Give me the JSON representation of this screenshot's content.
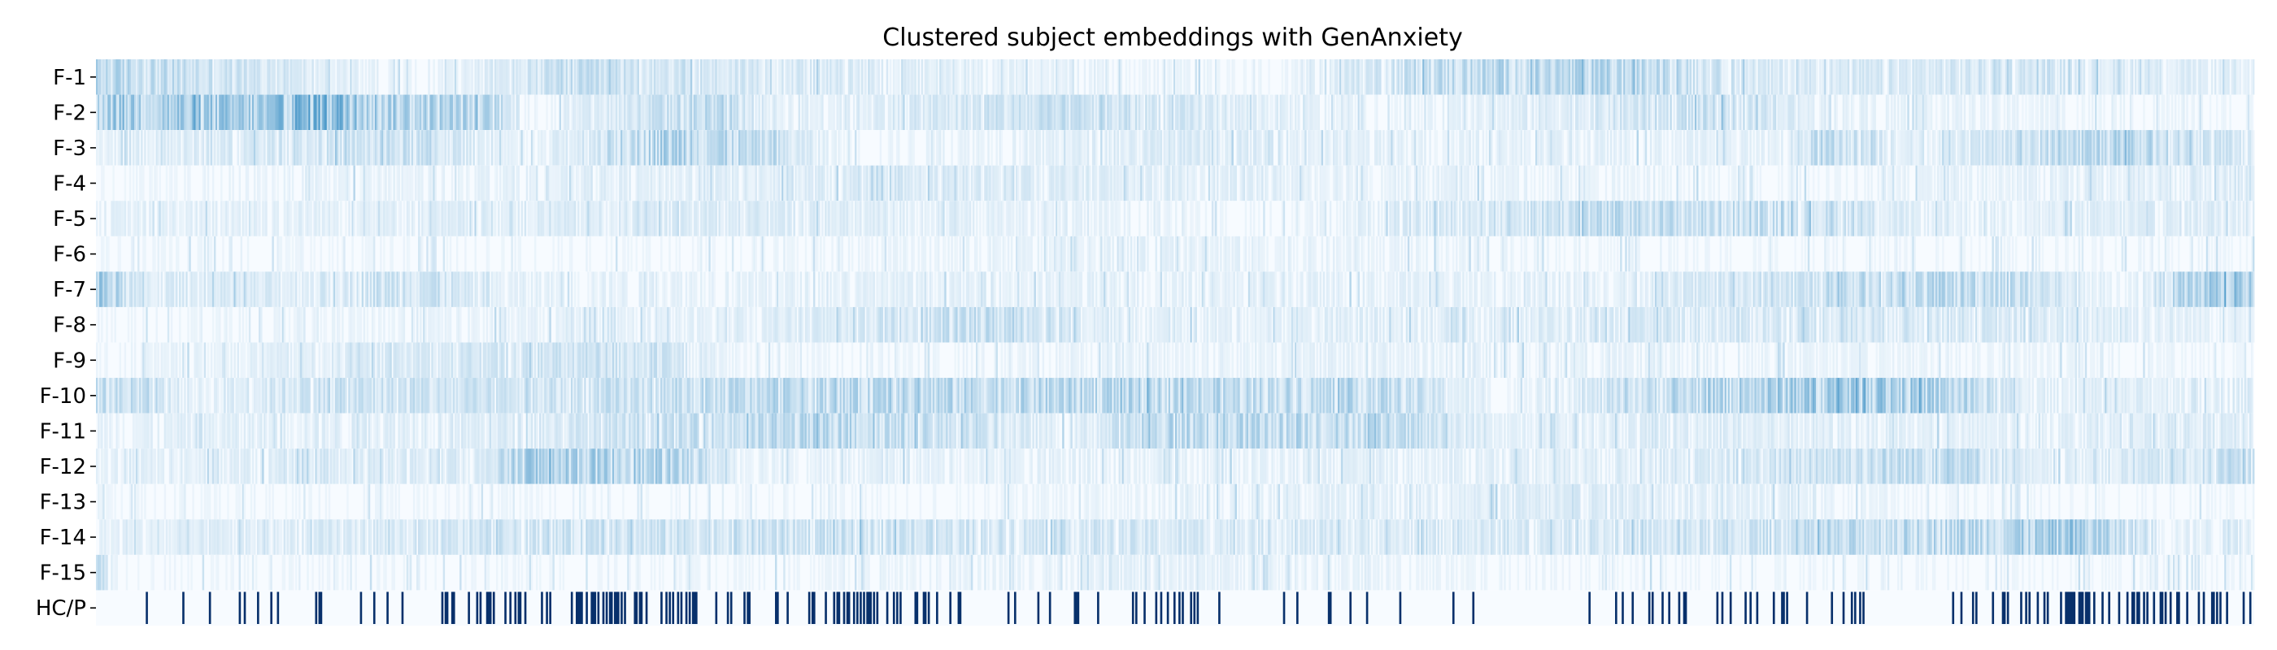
{
  "chart_data": {
    "type": "heatmap",
    "title": "Clustered subject embeddings with GenAnxiety",
    "colormap": "Blues",
    "rows": [
      "F-1",
      "F-2",
      "F-3",
      "F-4",
      "F-5",
      "F-6",
      "F-7",
      "F-8",
      "F-9",
      "F-10",
      "F-11",
      "F-12",
      "F-13",
      "F-14",
      "F-15",
      "HC/P"
    ],
    "binary_row": "HC/P",
    "binary_color": "#08306b",
    "max_color": "#4a98c9",
    "min_color": "#f7fbff",
    "n_columns": 1300,
    "row_intensity_profiles": {
      "F-1": [
        [
          0,
          0.35
        ],
        [
          0.15,
          0.05
        ],
        [
          0.22,
          0.25
        ],
        [
          0.3,
          0.2
        ],
        [
          0.4,
          0.1
        ],
        [
          0.55,
          0.05
        ],
        [
          0.62,
          0.3
        ],
        [
          0.7,
          0.35
        ],
        [
          0.78,
          0.15
        ],
        [
          0.9,
          0.2
        ],
        [
          1,
          0.1
        ]
      ],
      "F-2": [
        [
          0,
          0.5
        ],
        [
          0.08,
          0.45
        ],
        [
          0.1,
          0.75
        ],
        [
          0.13,
          0.45
        ],
        [
          0.18,
          0.35
        ],
        [
          0.2,
          0.05
        ],
        [
          0.28,
          0.3
        ],
        [
          0.32,
          0.1
        ],
        [
          0.45,
          0.25
        ],
        [
          0.6,
          0.05
        ],
        [
          0.75,
          0.25
        ],
        [
          0.8,
          0.1
        ],
        [
          1,
          0.05
        ]
      ],
      "F-3": [
        [
          0,
          0.1
        ],
        [
          0.15,
          0.25
        ],
        [
          0.2,
          0.05
        ],
        [
          0.27,
          0.45
        ],
        [
          0.35,
          0.05
        ],
        [
          0.5,
          0.15
        ],
        [
          0.6,
          0.1
        ],
        [
          0.78,
          0.1
        ],
        [
          0.8,
          0.3
        ],
        [
          0.85,
          0.1
        ],
        [
          0.93,
          0.35
        ],
        [
          1,
          0.15
        ]
      ],
      "F-4": [
        [
          0,
          0.05
        ],
        [
          0.2,
          0.1
        ],
        [
          0.4,
          0.15
        ],
        [
          0.6,
          0.1
        ],
        [
          0.8,
          0.05
        ],
        [
          1,
          0.15
        ]
      ],
      "F-5": [
        [
          0,
          0.1
        ],
        [
          0.3,
          0.15
        ],
        [
          0.55,
          0.05
        ],
        [
          0.7,
          0.3
        ],
        [
          0.8,
          0.25
        ],
        [
          0.85,
          0.1
        ],
        [
          1,
          0.15
        ]
      ],
      "F-6": [
        [
          0,
          0.05
        ],
        [
          0.3,
          0.05
        ],
        [
          0.5,
          0.1
        ],
        [
          0.7,
          0.05
        ],
        [
          1,
          0.05
        ]
      ],
      "F-7": [
        [
          0,
          0.5
        ],
        [
          0.02,
          0.15
        ],
        [
          0.1,
          0.15
        ],
        [
          0.15,
          0.3
        ],
        [
          0.18,
          0.1
        ],
        [
          0.45,
          0.1
        ],
        [
          0.7,
          0.1
        ],
        [
          0.88,
          0.35
        ],
        [
          0.94,
          0.05
        ],
        [
          0.98,
          0.45
        ],
        [
          1,
          0.4
        ]
      ],
      "F-8": [
        [
          0,
          0.05
        ],
        [
          0.3,
          0.1
        ],
        [
          0.43,
          0.3
        ],
        [
          0.48,
          0.1
        ],
        [
          0.7,
          0.15
        ],
        [
          0.82,
          0.2
        ],
        [
          1,
          0.1
        ]
      ],
      "F-9": [
        [
          0,
          0.05
        ],
        [
          0.2,
          0.2
        ],
        [
          0.25,
          0.25
        ],
        [
          0.3,
          0.05
        ],
        [
          0.6,
          0.1
        ],
        [
          1,
          0.05
        ]
      ],
      "F-10": [
        [
          0,
          0.3
        ],
        [
          0.05,
          0.1
        ],
        [
          0.1,
          0.25
        ],
        [
          0.2,
          0.2
        ],
        [
          0.3,
          0.3
        ],
        [
          0.45,
          0.35
        ],
        [
          0.6,
          0.3
        ],
        [
          0.65,
          0.05
        ],
        [
          0.82,
          0.55
        ],
        [
          0.86,
          0.35
        ],
        [
          0.9,
          0.1
        ],
        [
          1,
          0.15
        ]
      ],
      "F-11": [
        [
          0,
          0.1
        ],
        [
          0.2,
          0.15
        ],
        [
          0.35,
          0.35
        ],
        [
          0.45,
          0.1
        ],
        [
          0.5,
          0.35
        ],
        [
          0.6,
          0.3
        ],
        [
          0.65,
          0.1
        ],
        [
          0.75,
          0.15
        ],
        [
          0.85,
          0.1
        ],
        [
          1,
          0.15
        ]
      ],
      "F-12": [
        [
          0,
          0.1
        ],
        [
          0.18,
          0.15
        ],
        [
          0.2,
          0.45
        ],
        [
          0.27,
          0.35
        ],
        [
          0.3,
          0.1
        ],
        [
          0.6,
          0.1
        ],
        [
          0.75,
          0.15
        ],
        [
          0.86,
          0.35
        ],
        [
          0.9,
          0.1
        ],
        [
          1,
          0.25
        ]
      ],
      "F-13": [
        [
          0,
          0.05
        ],
        [
          0.4,
          0.05
        ],
        [
          0.55,
          0.1
        ],
        [
          0.7,
          0.15
        ],
        [
          0.85,
          0.05
        ],
        [
          1,
          0.05
        ]
      ],
      "F-14": [
        [
          0,
          0.1
        ],
        [
          0.3,
          0.25
        ],
        [
          0.45,
          0.2
        ],
        [
          0.6,
          0.15
        ],
        [
          0.75,
          0.2
        ],
        [
          0.92,
          0.45
        ],
        [
          0.96,
          0.1
        ],
        [
          1,
          0.15
        ]
      ],
      "F-15": [
        [
          0,
          0.3
        ],
        [
          0.01,
          0.05
        ],
        [
          0.3,
          0.05
        ],
        [
          0.5,
          0.1
        ],
        [
          0.7,
          0.05
        ],
        [
          1,
          0.05
        ]
      ]
    },
    "binary_density_profile": [
      [
        0,
        0.15
      ],
      [
        0.05,
        0.05
      ],
      [
        0.1,
        0.1
      ],
      [
        0.15,
        0.3
      ],
      [
        0.2,
        0.6
      ],
      [
        0.24,
        0.7
      ],
      [
        0.28,
        0.3
      ],
      [
        0.33,
        0.2
      ],
      [
        0.35,
        0.95
      ],
      [
        0.38,
        0.7
      ],
      [
        0.4,
        0.15
      ],
      [
        0.45,
        0.1
      ],
      [
        0.5,
        0.3
      ],
      [
        0.55,
        0.1
      ],
      [
        0.6,
        0.05
      ],
      [
        0.65,
        0.05
      ],
      [
        0.7,
        0.1
      ],
      [
        0.78,
        0.2
      ],
      [
        0.85,
        0.1
      ],
      [
        0.93,
        0.85
      ],
      [
        0.97,
        0.4
      ],
      [
        1,
        0.3
      ]
    ],
    "xlabel": "",
    "ylabel": ""
  }
}
